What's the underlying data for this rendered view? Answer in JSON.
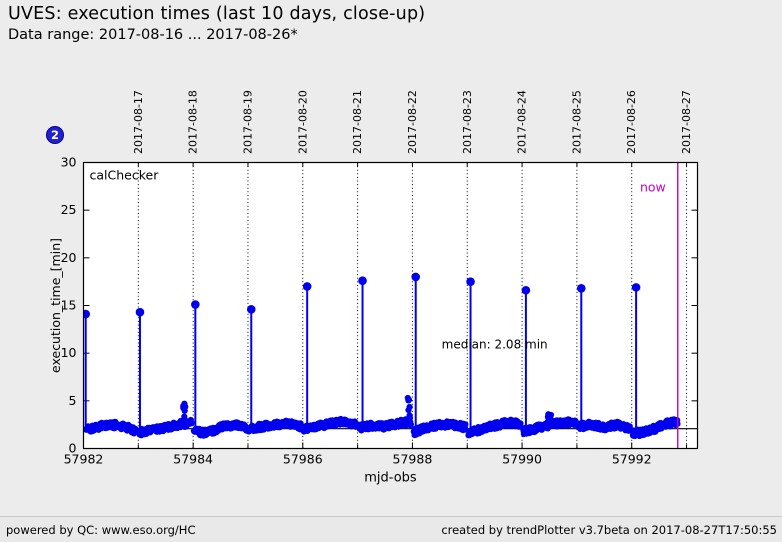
{
  "header": {
    "title": "UVES: execution times (last 10 days, close-up)",
    "subtitle": "Data range: 2017-08-16 ... 2017-08-26*"
  },
  "badge": {
    "label": "2"
  },
  "footer": {
    "left": "powered by QC: www.eso.org/HC",
    "right": "created by trendPlotter v3.7beta on 2017-08-27T17:50:55"
  },
  "chart_data": {
    "type": "scatter",
    "title": "",
    "xlabel": "mjd-obs",
    "ylabel": "execution_time_[min]",
    "inner_label": "calChecker",
    "xlim": [
      57982,
      57993.2
    ],
    "ylim": [
      0,
      30
    ],
    "x_major_ticks": [
      57982,
      57984,
      57986,
      57988,
      57990,
      57992
    ],
    "x_minor_ticks": [
      57983,
      57985,
      57987,
      57989,
      57991,
      57993
    ],
    "y_ticks": [
      0,
      5,
      10,
      15,
      20,
      25,
      30
    ],
    "grid": "vertical dotted lines at each day boundary",
    "legend": "none",
    "series_color": "#0000ee",
    "now_color": "#c400c4",
    "day_boundaries": [
      {
        "mjd": 57983,
        "label": "2017-08-17"
      },
      {
        "mjd": 57984,
        "label": "2017-08-18"
      },
      {
        "mjd": 57985,
        "label": "2017-08-19"
      },
      {
        "mjd": 57986,
        "label": "2017-08-20"
      },
      {
        "mjd": 57987,
        "label": "2017-08-21"
      },
      {
        "mjd": 57988,
        "label": "2017-08-22"
      },
      {
        "mjd": 57989,
        "label": "2017-08-23"
      },
      {
        "mjd": 57990,
        "label": "2017-08-24"
      },
      {
        "mjd": 57991,
        "label": "2017-08-25"
      },
      {
        "mjd": 57992,
        "label": "2017-08-26"
      },
      {
        "mjd": 57993,
        "label": "2017-08-27"
      }
    ],
    "now": {
      "mjd": 57992.84,
      "label": "now"
    },
    "median": {
      "value": 2.08,
      "label": "median: 2.08 min",
      "anchor_x": 57989.5,
      "anchor_y": 10.5
    },
    "spikes": [
      {
        "x": 57982.04,
        "y": 14.1
      },
      {
        "x": 57983.03,
        "y": 14.3
      },
      {
        "x": 57984.04,
        "y": 15.1
      },
      {
        "x": 57985.06,
        "y": 14.6
      },
      {
        "x": 57986.08,
        "y": 17.0
      },
      {
        "x": 57987.09,
        "y": 17.6
      },
      {
        "x": 57988.06,
        "y": 18.0
      },
      {
        "x": 57989.06,
        "y": 17.5
      },
      {
        "x": 57990.07,
        "y": 16.6
      },
      {
        "x": 57991.08,
        "y": 16.8
      },
      {
        "x": 57992.08,
        "y": 16.9
      }
    ],
    "small_peaks": [
      {
        "x": 57983.85,
        "ymax": 4.7,
        "n": 9
      },
      {
        "x": 57987.93,
        "ymax": 5.3,
        "n": 7
      },
      {
        "x": 57990.5,
        "ymax": 3.6,
        "n": 5
      }
    ],
    "baseline_segments": [
      {
        "x0": 57982.05,
        "x1": 57982.97,
        "levels": [
          2.0,
          2.3,
          2.5,
          2.3,
          1.8
        ]
      },
      {
        "x0": 57983.02,
        "x1": 57983.97,
        "levels": [
          1.7,
          1.9,
          2.2,
          2.5,
          2.7
        ]
      },
      {
        "x0": 57984.02,
        "x1": 57984.97,
        "levels": [
          1.8,
          1.6,
          2.2,
          2.5,
          2.2
        ]
      },
      {
        "x0": 57985.02,
        "x1": 57985.97,
        "levels": [
          2.1,
          2.3,
          2.5,
          2.6,
          2.3
        ]
      },
      {
        "x0": 57986.02,
        "x1": 57986.97,
        "levels": [
          2.0,
          2.3,
          2.6,
          2.8,
          2.5
        ]
      },
      {
        "x0": 57987.02,
        "x1": 57987.97,
        "levels": [
          2.2,
          2.4,
          2.3,
          2.6,
          2.8
        ]
      },
      {
        "x0": 57988.02,
        "x1": 57988.97,
        "levels": [
          1.7,
          2.2,
          2.5,
          2.5,
          2.2
        ]
      },
      {
        "x0": 57989.02,
        "x1": 57989.97,
        "levels": [
          1.6,
          2.0,
          2.4,
          2.7,
          2.6
        ]
      },
      {
        "x0": 57990.02,
        "x1": 57990.97,
        "levels": [
          1.8,
          2.1,
          2.5,
          2.7,
          2.8
        ]
      },
      {
        "x0": 57991.02,
        "x1": 57991.97,
        "levels": [
          2.3,
          2.5,
          2.2,
          2.5,
          2.1
        ]
      },
      {
        "x0": 57992.02,
        "x1": 57992.84,
        "levels": [
          1.6,
          1.7,
          2.1,
          2.6,
          2.8
        ]
      }
    ],
    "baseline_noise": 0.35,
    "baseline_density_per_day": 130
  }
}
